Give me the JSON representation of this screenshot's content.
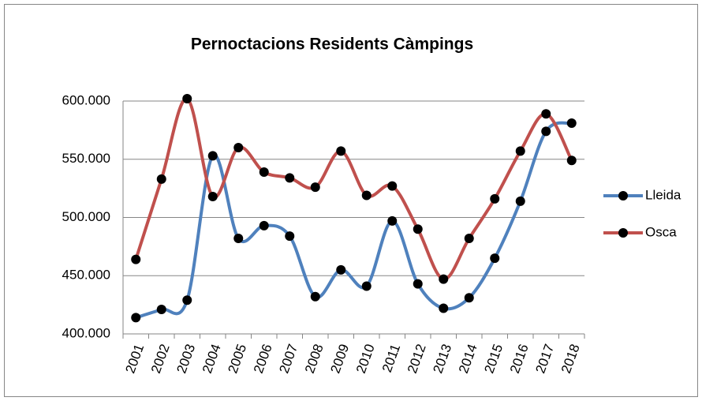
{
  "chart_data": {
    "type": "line",
    "title": "Pernoctacions Residents  Càmpings",
    "categories": [
      "2001",
      "2002",
      "2003",
      "2004",
      "2005",
      "2006",
      "2007",
      "2008",
      "2009",
      "2010",
      "2011",
      "2012",
      "2013",
      "2014",
      "2015",
      "2016",
      "2017",
      "2018"
    ],
    "series": [
      {
        "name": "Lleida",
        "color": "#4f81bd",
        "values": [
          414000,
          421000,
          429000,
          553000,
          482000,
          493000,
          484000,
          432000,
          455000,
          441000,
          497000,
          443000,
          422000,
          431000,
          465000,
          514000,
          574000,
          581000
        ]
      },
      {
        "name": "Osca",
        "color": "#c0504d",
        "values": [
          464000,
          533000,
          602000,
          518000,
          560000,
          539000,
          534000,
          526000,
          557000,
          519000,
          527000,
          490000,
          447000,
          482000,
          516000,
          557000,
          589000,
          549000
        ]
      }
    ],
    "ylim": [
      400000,
      600000
    ],
    "yticks": [
      {
        "value": 400000,
        "label": "400.000"
      },
      {
        "value": 450000,
        "label": "450.000"
      },
      {
        "value": 500000,
        "label": "500.000"
      },
      {
        "value": 550000,
        "label": "550.000"
      },
      {
        "value": 600000,
        "label": "600.000"
      }
    ],
    "grid": true,
    "legend": "right"
  }
}
